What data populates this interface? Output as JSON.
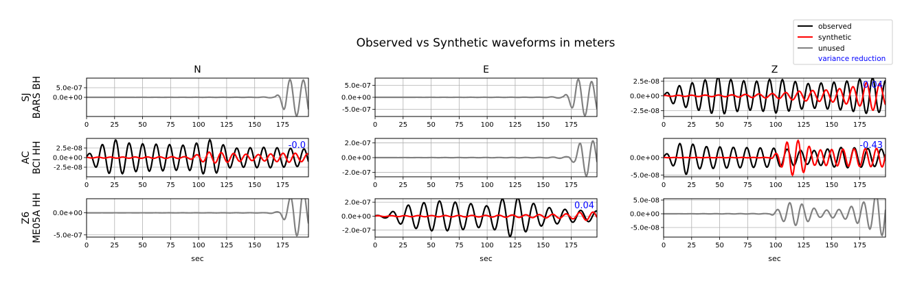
{
  "title": "Observed vs Synthetic waveforms in meters",
  "legend": {
    "placement": "top-right",
    "entries": [
      {
        "label": "observed",
        "color": "#000000"
      },
      {
        "label": "synthetic",
        "color": "#ff0000"
      },
      {
        "label": "unused",
        "color": "#808080"
      },
      {
        "label": "variance reduction",
        "color": "#0000ff"
      }
    ]
  },
  "columns": [
    "N",
    "E",
    "Z"
  ],
  "rows": [
    {
      "network": "SJ",
      "station": "BARS BH"
    },
    {
      "network": "AC",
      "station": "BCI HH"
    },
    {
      "network": "Z6",
      "station": "ME05A HH"
    }
  ],
  "xlabel": "sec",
  "xticks": [
    0,
    25,
    50,
    75,
    100,
    125,
    150,
    175
  ],
  "xlim": [
    0,
    198
  ],
  "chart_data": [
    {
      "type": "line",
      "row": 0,
      "col": 0,
      "ylim": [
        -1e-06,
        1e-06
      ],
      "yticks": [
        0,
        5e-07
      ],
      "ytick_labels": [
        "0.0e+00",
        "5.0e-07"
      ],
      "unused": true,
      "vr": "",
      "traces": [
        {
          "name": "unused",
          "color": "#808080",
          "start": 0,
          "env": [
            [
              0,
              0
            ],
            [
              150,
              0.005
            ],
            [
              168,
              0.03
            ],
            [
              172,
              0.2
            ],
            [
              178,
              0.9
            ],
            [
              186,
              1.0
            ],
            [
              195,
              0.9
            ]
          ],
          "period": 12,
          "phase": 0.8
        }
      ]
    },
    {
      "type": "line",
      "row": 0,
      "col": 1,
      "ylim": [
        -8e-07,
        8e-07
      ],
      "yticks": [
        -5e-07,
        0,
        5e-07
      ],
      "ytick_labels": [
        "-5.0e-07",
        "0.0e+00",
        "5.0e-07"
      ],
      "unused": true,
      "vr": "",
      "traces": [
        {
          "name": "unused",
          "color": "#808080",
          "start": 0,
          "env": [
            [
              0,
              0
            ],
            [
              150,
              0.006
            ],
            [
              168,
              0.05
            ],
            [
              172,
              0.25
            ],
            [
              180,
              0.95
            ],
            [
              186,
              1.0
            ],
            [
              195,
              0.8
            ]
          ],
          "period": 12,
          "phase": 0.9
        }
      ]
    },
    {
      "type": "line",
      "row": 0,
      "col": 2,
      "ylim": [
        -3.5e-08,
        3e-08
      ],
      "yticks": [
        -2.5e-08,
        0,
        2.5e-08
      ],
      "ytick_labels": [
        "-2.5e-08",
        "0.0e+00",
        "2.5e-08"
      ],
      "unused": false,
      "vr": "0.04",
      "traces": [
        {
          "name": "observed",
          "color": "#000000",
          "start": 0,
          "env": [
            [
              0,
              0.05
            ],
            [
              10,
              0.45
            ],
            [
              30,
              0.7
            ],
            [
              50,
              0.95
            ],
            [
              60,
              0.8
            ],
            [
              80,
              0.7
            ],
            [
              100,
              0.85
            ],
            [
              130,
              0.6
            ],
            [
              160,
              0.7
            ],
            [
              185,
              0.9
            ],
            [
              198,
              0.75
            ]
          ],
          "period": 11.5,
          "phase": 0.2
        },
        {
          "name": "synthetic",
          "color": "#ff0000",
          "start": 0,
          "env": [
            [
              0,
              0.02
            ],
            [
              60,
              0.05
            ],
            [
              100,
              0.12
            ],
            [
              125,
              0.25
            ],
            [
              150,
              0.3
            ],
            [
              175,
              0.5
            ],
            [
              185,
              0.75
            ],
            [
              198,
              0.5
            ]
          ],
          "period": 12,
          "phase": 1.1
        }
      ]
    },
    {
      "type": "line",
      "row": 1,
      "col": 0,
      "ylim": [
        -5e-08,
        5e-08
      ],
      "yticks": [
        -2.5e-08,
        0,
        2.5e-08
      ],
      "ytick_labels": [
        "-2.5e-08",
        "0.0e+00",
        "2.5e-08"
      ],
      "unused": false,
      "vr": "-0.0",
      "traces": [
        {
          "name": "observed",
          "color": "#000000",
          "start": 0,
          "env": [
            [
              0,
              0.1
            ],
            [
              10,
              0.6
            ],
            [
              25,
              0.95
            ],
            [
              40,
              0.75
            ],
            [
              70,
              0.7
            ],
            [
              90,
              0.65
            ],
            [
              110,
              0.95
            ],
            [
              130,
              0.5
            ],
            [
              160,
              0.55
            ],
            [
              198,
              0.45
            ]
          ],
          "period": 12,
          "phase": 0.5
        },
        {
          "name": "synthetic",
          "color": "#ff0000",
          "start": 0,
          "env": [
            [
              0,
              0.02
            ],
            [
              90,
              0.05
            ],
            [
              110,
              0.3
            ],
            [
              125,
              0.25
            ],
            [
              150,
              0.15
            ],
            [
              180,
              0.25
            ],
            [
              198,
              0.2
            ]
          ],
          "period": 11,
          "phase": 2.0
        }
      ]
    },
    {
      "type": "line",
      "row": 1,
      "col": 1,
      "ylim": [
        -2.6e-07,
        2.6e-07
      ],
      "yticks": [
        -2e-07,
        0,
        2e-07
      ],
      "ytick_labels": [
        "-2.0e-07",
        "0.0e+00",
        "2.0e-07"
      ],
      "unused": true,
      "vr": "",
      "traces": [
        {
          "name": "unused",
          "color": "#808080",
          "start": 0,
          "env": [
            [
              0,
              0
            ],
            [
              150,
              0.01
            ],
            [
              172,
              0.05
            ],
            [
              178,
              0.3
            ],
            [
              184,
              0.9
            ],
            [
              190,
              1.0
            ],
            [
              198,
              0.8
            ]
          ],
          "period": 12,
          "phase": 0.3
        }
      ]
    },
    {
      "type": "line",
      "row": 1,
      "col": 2,
      "ylim": [
        -5.5e-08,
        5.5e-08
      ],
      "yticks": [
        -5e-08,
        0
      ],
      "ytick_labels": [
        "-5.0e-08",
        "0.0e+00"
      ],
      "unused": false,
      "vr": "-0.43",
      "traces": [
        {
          "name": "observed",
          "color": "#000000",
          "start": 0,
          "env": [
            [
              0,
              0.1
            ],
            [
              10,
              0.5
            ],
            [
              18,
              0.95
            ],
            [
              30,
              0.6
            ],
            [
              60,
              0.55
            ],
            [
              100,
              0.5
            ],
            [
              130,
              0.35
            ],
            [
              160,
              0.55
            ],
            [
              198,
              0.45
            ]
          ],
          "period": 12,
          "phase": 0.4
        },
        {
          "name": "synthetic",
          "color": "#ff0000",
          "start": 0,
          "env": [
            [
              0,
              0.005
            ],
            [
              95,
              0.01
            ],
            [
              102,
              0.3
            ],
            [
              112,
              0.95
            ],
            [
              122,
              0.9
            ],
            [
              135,
              0.4
            ],
            [
              160,
              0.45
            ],
            [
              198,
              0.5
            ]
          ],
          "period": 10,
          "phase": 1.6
        }
      ]
    },
    {
      "type": "line",
      "row": 2,
      "col": 0,
      "ylim": [
        -5.5e-07,
        3.2e-07
      ],
      "yticks": [
        -5e-07,
        0
      ],
      "ytick_labels": [
        "-5.0e-07",
        "0.0e+00"
      ],
      "unused": true,
      "vr": "",
      "traces": [
        {
          "name": "unused",
          "color": "#808080",
          "start": 0,
          "env": [
            [
              0,
              0
            ],
            [
              160,
              0.005
            ],
            [
              172,
              0.05
            ],
            [
              178,
              0.4
            ],
            [
              186,
              0.95
            ],
            [
              192,
              1.0
            ],
            [
              198,
              0.7
            ]
          ],
          "period": 12,
          "phase": 0.7
        }
      ]
    },
    {
      "type": "line",
      "row": 2,
      "col": 1,
      "ylim": [
        -3e-07,
        2.5e-07
      ],
      "yticks": [
        -2e-07,
        0,
        2e-07
      ],
      "ytick_labels": [
        "-2.0e-07",
        "0.0e+00",
        "2.0e-07"
      ],
      "unused": false,
      "vr": "0.04",
      "traces": [
        {
          "name": "observed",
          "color": "#000000",
          "start": 0,
          "env": [
            [
              0,
              0.02
            ],
            [
              10,
              0.1
            ],
            [
              30,
              0.55
            ],
            [
              55,
              0.75
            ],
            [
              80,
              0.65
            ],
            [
              100,
              0.5
            ],
            [
              120,
              1.0
            ],
            [
              130,
              0.85
            ],
            [
              150,
              0.45
            ],
            [
              175,
              0.3
            ],
            [
              198,
              0.25
            ]
          ],
          "period": 14,
          "phase": 0.9
        },
        {
          "name": "synthetic",
          "color": "#ff0000",
          "start": 0,
          "env": [
            [
              0,
              0.02
            ],
            [
              100,
              0.04
            ],
            [
              150,
              0.08
            ],
            [
              175,
              0.12
            ],
            [
              185,
              0.2
            ],
            [
              198,
              0.2
            ]
          ],
          "period": 12,
          "phase": 0.3
        }
      ]
    },
    {
      "type": "line",
      "row": 2,
      "col": 2,
      "ylim": [
        -8.5e-08,
        5.5e-08
      ],
      "yticks": [
        -5e-08,
        0,
        5e-08
      ],
      "ytick_labels": [
        "-5.0e-08",
        "0.0e+00",
        "5.0e-08"
      ],
      "unused": true,
      "vr": "",
      "traces": [
        {
          "name": "unused",
          "color": "#808080",
          "start": 0,
          "env": [
            [
              0,
              0
            ],
            [
              95,
              0.01
            ],
            [
              102,
              0.2
            ],
            [
              115,
              0.55
            ],
            [
              125,
              0.4
            ],
            [
              140,
              0.15
            ],
            [
              160,
              0.2
            ],
            [
              178,
              0.5
            ],
            [
              185,
              0.7
            ],
            [
              192,
              1.0
            ],
            [
              198,
              0.9
            ]
          ],
          "period": 11,
          "phase": 0.2
        }
      ]
    }
  ]
}
